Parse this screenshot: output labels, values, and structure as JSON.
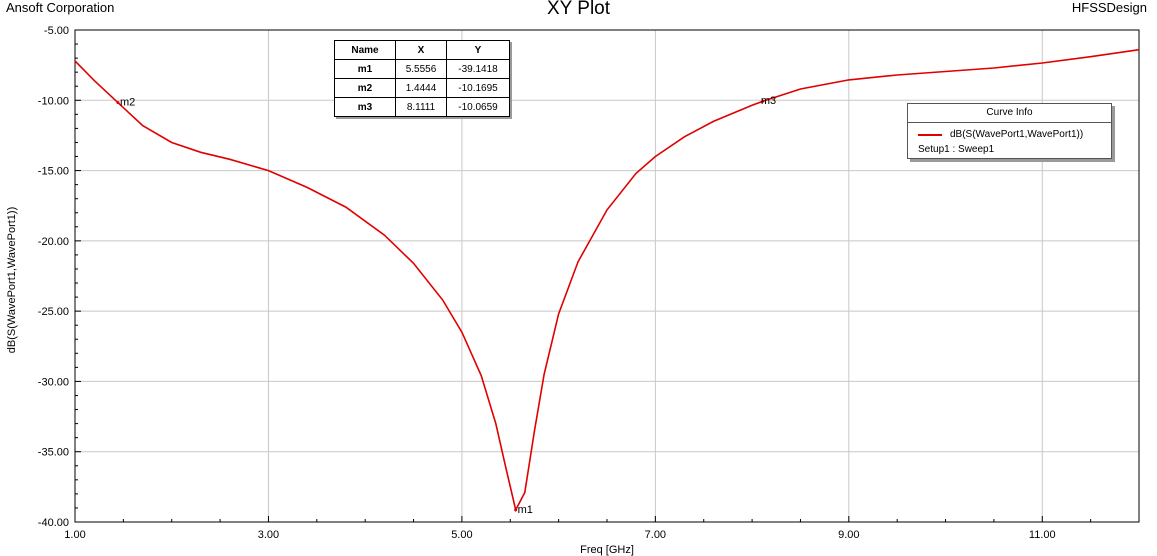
{
  "header": {
    "left": "Ansoft Corporation",
    "right": "HFSSDesign"
  },
  "chart_data": {
    "type": "line",
    "title": "XY Plot",
    "xlabel": "Freq [GHz]",
    "ylabel": "dB(S(WavePort1,WavePort1))",
    "xlim": [
      1.0,
      12.0
    ],
    "ylim": [
      -40.0,
      -5.0
    ],
    "x_ticks": [
      "1.00",
      "3.00",
      "5.00",
      "7.00",
      "9.00",
      "11.00"
    ],
    "y_ticks": [
      "-5.00",
      "-10.00",
      "-15.00",
      "-20.00",
      "-25.00",
      "-30.00",
      "-35.00",
      "-40.00"
    ],
    "grid": true,
    "legend_position": "top-right",
    "series": [
      {
        "name": "dB(S(WavePort1,WavePort1))",
        "color": "#e00000",
        "x": [
          1.0,
          1.2,
          1.4444,
          1.7,
          2.0,
          2.3,
          2.6,
          3.0,
          3.4,
          3.8,
          4.2,
          4.5,
          4.8,
          5.0,
          5.2,
          5.35,
          5.45,
          5.5556,
          5.65,
          5.75,
          5.85,
          6.0,
          6.2,
          6.5,
          6.8,
          7.0,
          7.3,
          7.6,
          8.0,
          8.1111,
          8.5,
          9.0,
          9.5,
          10.0,
          10.5,
          11.0,
          11.5,
          12.0
        ],
        "y": [
          -7.2,
          -8.6,
          -10.17,
          -11.8,
          -13.0,
          -13.7,
          -14.2,
          -15.0,
          -16.2,
          -17.6,
          -19.6,
          -21.6,
          -24.2,
          -26.5,
          -29.6,
          -33.0,
          -36.0,
          -39.14,
          -37.9,
          -33.5,
          -29.5,
          -25.2,
          -21.5,
          -17.8,
          -15.2,
          -14.0,
          -12.6,
          -11.5,
          -10.35,
          -10.07,
          -9.2,
          -8.55,
          -8.2,
          -7.95,
          -7.7,
          -7.35,
          -6.9,
          -6.4
        ]
      }
    ],
    "markers": {
      "headers": [
        "Name",
        "X",
        "Y"
      ],
      "rows": [
        {
          "name": "m1",
          "x": "5.5556",
          "y": "-39.1418",
          "xv": 5.5556,
          "yv": -39.1418
        },
        {
          "name": "m2",
          "x": "1.4444",
          "y": "-10.1695",
          "xv": 1.4444,
          "yv": -10.1695
        },
        {
          "name": "m3",
          "x": "8.1111",
          "y": "-10.0659",
          "xv": 8.1111,
          "yv": -10.0659
        }
      ]
    },
    "legend": {
      "title": "Curve Info",
      "entry": "dB(S(WavePort1,WavePort1))",
      "setup": "Setup1 : Sweep1"
    }
  }
}
